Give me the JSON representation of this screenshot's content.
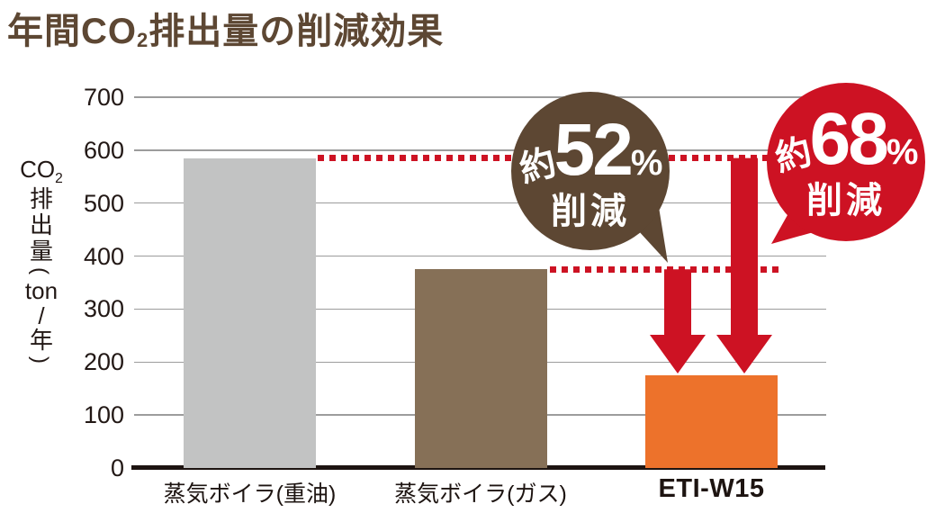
{
  "title": {
    "pre": "年間CO",
    "sub": "2",
    "post": "排出量の削減効果"
  },
  "y_axis": {
    "label_segments": [
      "CO",
      "2",
      "排",
      "出",
      "量",
      "(",
      "ton",
      "/",
      "年",
      ")"
    ],
    "ticks": [
      700,
      600,
      500,
      400,
      300,
      200,
      100,
      0
    ]
  },
  "callouts": {
    "c52": {
      "prefix": "約",
      "value": "52",
      "unit": "%",
      "label": "削減"
    },
    "c68": {
      "prefix": "約",
      "value": "68",
      "unit": "%",
      "label": "削減"
    }
  },
  "colors": {
    "title_brown": "#5d4733",
    "bubble_brown": "#5d4733",
    "bubble_red": "#cd1223",
    "arrow_red": "#cd1223",
    "dotted_line_red": "#cd1223",
    "bar_gray": "#c2c3c3",
    "bar_brown": "#867057",
    "bar_orange": "#ed722b",
    "axis_black": "#1d1411",
    "grid_gray": "#9c9c9c",
    "text_dark": "#221815"
  },
  "chart_data": {
    "type": "bar",
    "title": "年間CO2排出量の削減効果",
    "ylabel": "CO2排出量(ton/年)",
    "xlabel": "",
    "ylim": [
      0,
      700
    ],
    "yticks": [
      0,
      100,
      200,
      300,
      400,
      500,
      600,
      700
    ],
    "grid": true,
    "categories": [
      "蒸気ボイラ(重油)",
      "蒸気ボイラ(ガス)",
      "ETI-W15"
    ],
    "values": [
      585,
      375,
      175
    ],
    "bar_colors": [
      "#c2c3c3",
      "#867057",
      "#ed722b"
    ],
    "reference_lines": [
      {
        "value": 585,
        "style": "dotted",
        "color": "#cd1223"
      },
      {
        "value": 375,
        "style": "dotted",
        "color": "#cd1223"
      }
    ],
    "annotations": [
      {
        "text": "約52%削減",
        "shape": "speech-bubble",
        "color": "#5d4733",
        "arrow_from": 375,
        "arrow_to": 175
      },
      {
        "text": "約68%削減",
        "shape": "speech-bubble",
        "color": "#cd1223",
        "arrow_from": 585,
        "arrow_to": 175
      }
    ]
  }
}
